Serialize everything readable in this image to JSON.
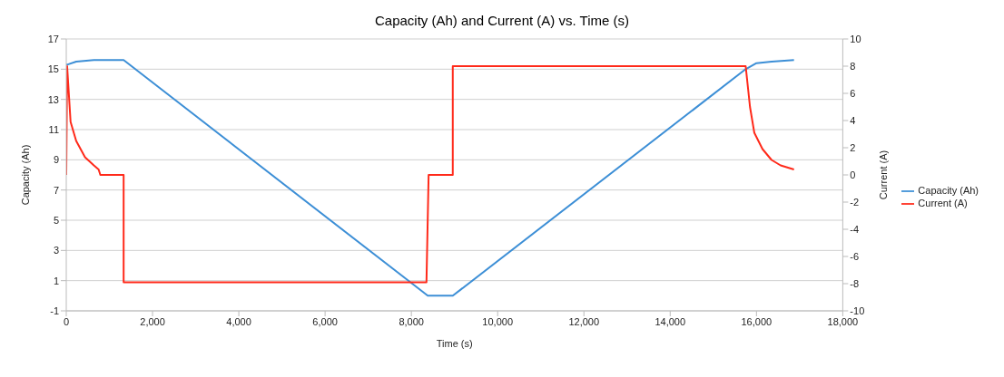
{
  "chart_data": {
    "type": "line",
    "title": "Capacity (Ah) and Current (A) vs. Time (s)",
    "xlabel": "Time (s)",
    "ylabel": "Capacity (Ah)",
    "y2label": "Current (A)",
    "xlim": [
      0,
      18000
    ],
    "xticks": [
      0,
      {
        "value": 2000,
        "label": "2,000"
      },
      {
        "value": 4000,
        "label": "4,000"
      },
      {
        "value": 6000,
        "label": "6,000"
      },
      {
        "value": 8000,
        "label": "8,000"
      },
      {
        "value": 10000,
        "label": "10,000"
      },
      {
        "value": 12000,
        "label": "12,000"
      },
      {
        "value": 14000,
        "label": "14,000"
      },
      {
        "value": 16000,
        "label": "16,000"
      },
      {
        "value": 18000,
        "label": "18,000"
      }
    ],
    "ylim": [
      -1,
      17
    ],
    "yticks": [
      -1,
      1,
      3,
      5,
      7,
      9,
      11,
      13,
      15,
      17
    ],
    "y2lim": [
      -10,
      10
    ],
    "y2ticks": [
      -10,
      -8,
      -6,
      -4,
      -2,
      0,
      2,
      4,
      6,
      8,
      10
    ],
    "grid": "y",
    "legend": "right",
    "marker": "none",
    "line_style": "solid",
    "series": [
      {
        "name": "Capacity (Ah)",
        "color": "#3d8fd6",
        "x": [
          0,
          20,
          230,
          640,
          1330,
          8380,
          8960,
          15750,
          16000,
          16350,
          16870
        ],
        "values": [
          15.3,
          15.3,
          15.5,
          15.6,
          15.6,
          0,
          0,
          15.0,
          15.4,
          15.5,
          15.6
        ]
      },
      {
        "name": "Current (A)",
        "color": "#ff2a1a",
        "axis": "y2",
        "x": [
          0,
          20,
          100,
          230,
          435,
          640,
          750,
          790,
          1330,
          1330,
          8350,
          8400,
          8960,
          8960,
          15750,
          15850,
          15950,
          16140,
          16350,
          16560,
          16870
        ],
        "values": [
          0,
          8,
          3.9,
          2.5,
          1.3,
          0.7,
          0.4,
          0,
          0,
          -7.9,
          -7.9,
          0,
          0,
          8,
          8,
          5,
          3.1,
          1.9,
          1.1,
          0.7,
          0.4
        ]
      }
    ]
  }
}
